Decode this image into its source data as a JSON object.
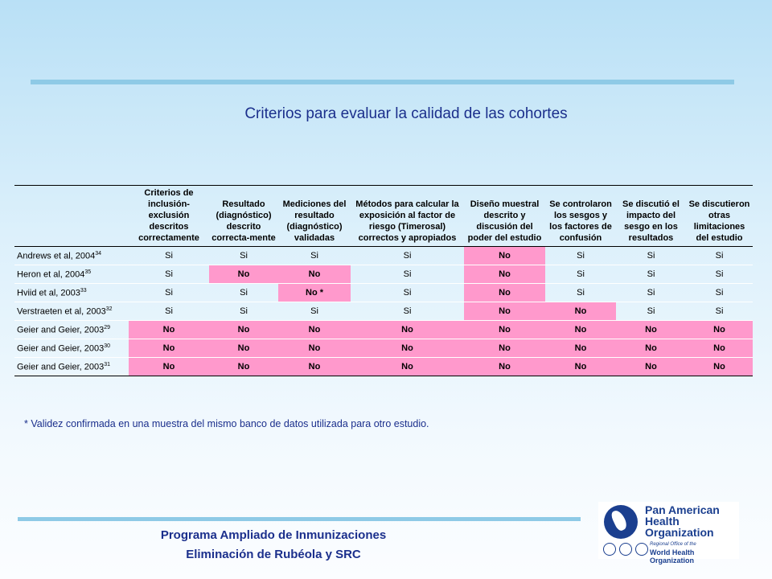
{
  "title": "Criterios para evaluar la calidad de las cohortes",
  "columns": [
    "Criterios de inclusión-exclusión descritos correctamente",
    "Resultado (diagnóstico) descrito correcta-mente",
    "Mediciones del resultado (diagnóstico) validadas",
    "Métodos para calcular la exposición al factor de riesgo (Timerosal) correctos y apropiados",
    "Diseño muestral descrito y discusión del poder del estudio",
    "Se controlaron los sesgos y los factores de confusión",
    "Se discutió el impacto del sesgo en los resultados",
    "Se discutieron otras limitaciones del estudio"
  ],
  "rows": [
    {
      "study": "Andrews et al, 2004",
      "ref": "34",
      "values": [
        "Si",
        "Si",
        "Si",
        "Si",
        "No",
        "Si",
        "Si",
        "Si"
      ]
    },
    {
      "study": "Heron et al, 2004",
      "ref": "35",
      "values": [
        "Si",
        "No",
        "No",
        "Si",
        "No",
        "Si",
        "Si",
        "Si"
      ]
    },
    {
      "study": "Hviid et al, 2003",
      "ref": "33",
      "values": [
        "Si",
        "Si",
        "No *",
        "Si",
        "No",
        "Si",
        "Si",
        "Si"
      ]
    },
    {
      "study": "Verstraeten et al, 2003",
      "ref": "32",
      "values": [
        "Si",
        "Si",
        "Si",
        "Si",
        "No",
        "No",
        "Si",
        "Si"
      ]
    },
    {
      "study": "Geier and Geier, 2003",
      "ref": "29",
      "values": [
        "No",
        "No",
        "No",
        "No",
        "No",
        "No",
        "No",
        "No"
      ]
    },
    {
      "study": "Geier and Geier, 2003",
      "ref": "30",
      "values": [
        "No",
        "No",
        "No",
        "No",
        "No",
        "No",
        "No",
        "No"
      ]
    },
    {
      "study": "Geier and Geier, 2003",
      "ref": "31",
      "values": [
        "No",
        "No",
        "No",
        "No",
        "No",
        "No",
        "No",
        "No"
      ]
    }
  ],
  "highlight_color": "#ff99cc",
  "footnote": "* Validez confirmada en una muestra del mismo banco de datos utilizada para otro estudio.",
  "program_line1": "Programa Ampliado de Inmunizaciones",
  "program_line2": "Eliminación de Rubéola y SRC",
  "logo": {
    "line1": "Pan American",
    "line2": "Health",
    "line3": "Organization",
    "regional": "Regional Office of the",
    "who": "World Health Organization"
  }
}
